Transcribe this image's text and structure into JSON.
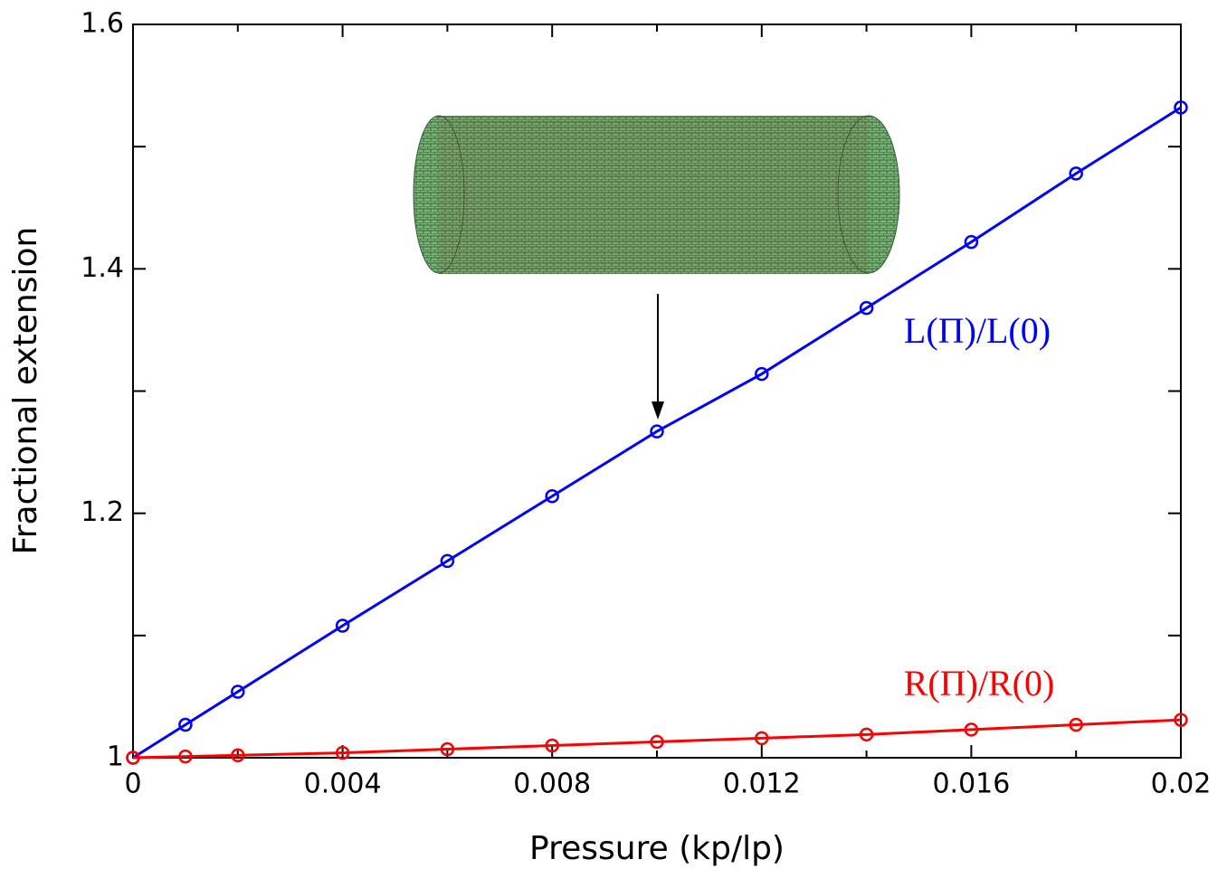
{
  "chart_data": {
    "type": "line",
    "x_label": "Pressure (kp/lp)",
    "y_label": "Fractional extension",
    "xlim": [
      0,
      0.02
    ],
    "ylim": [
      1,
      1.6
    ],
    "xticks": [
      0,
      0.004,
      0.008,
      0.012,
      0.016,
      0.02
    ],
    "yticks": [
      1,
      1.2,
      1.4,
      1.6
    ],
    "x_minor_ticks": [
      0.002,
      0.006,
      0.01,
      0.014,
      0.018
    ],
    "y_minor_ticks": [
      1.1,
      1.3,
      1.5
    ],
    "series": [
      {
        "name": "L(Π)/L(0)",
        "color": "#0000ff",
        "x": [
          0,
          0.001,
          0.002,
          0.004,
          0.006,
          0.008,
          0.01,
          0.012,
          0.014,
          0.016,
          0.018,
          0.02
        ],
        "values": [
          1,
          1.027,
          1.054,
          1.108,
          1.161,
          1.214,
          1.267,
          1.314,
          1.368,
          1.422,
          1.478,
          1.532
        ]
      },
      {
        "name": "R(Π)/R(0)",
        "color": "#ff0000",
        "x": [
          0,
          0.001,
          0.002,
          0.004,
          0.006,
          0.008,
          0.01,
          0.012,
          0.014,
          0.016,
          0.018,
          0.02
        ],
        "values": [
          1,
          1.001,
          1.002,
          1.004,
          1.007,
          1.01,
          1.013,
          1.016,
          1.019,
          1.023,
          1.027,
          1.031
        ]
      }
    ]
  }
}
